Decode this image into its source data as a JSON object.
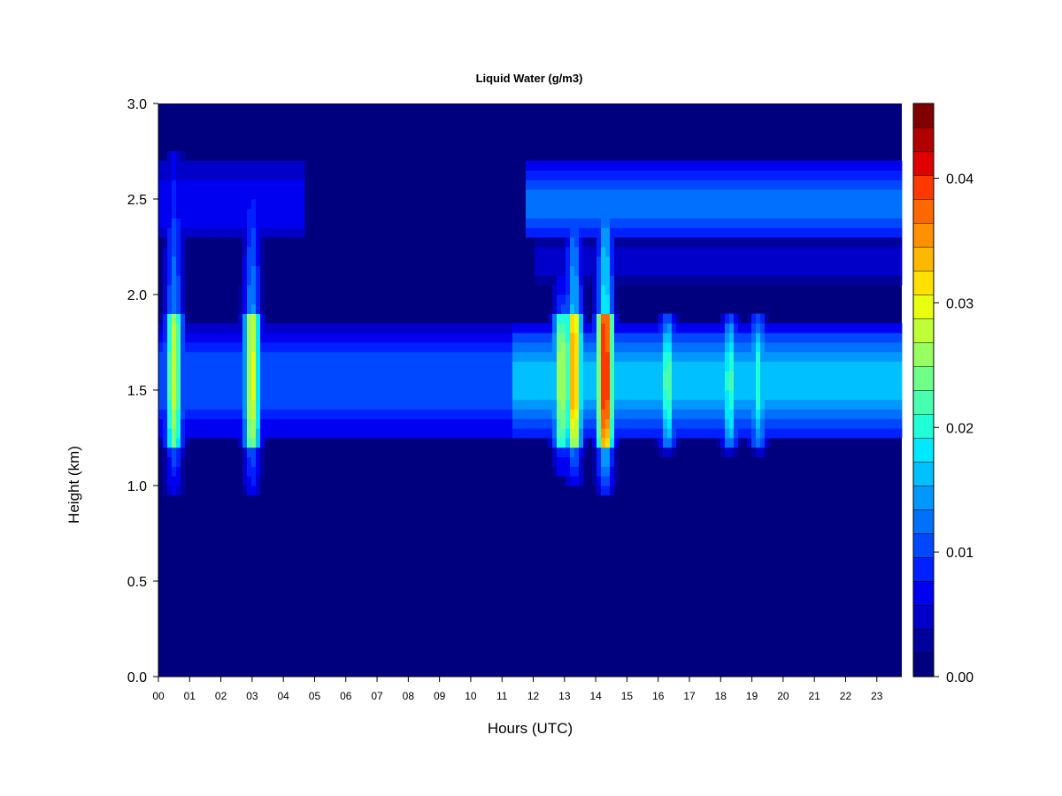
{
  "chart_data": {
    "type": "heatmap",
    "title": "Liquid Water (g/m3)",
    "xlabel": "Hours (UTC)",
    "ylabel": "Height (km)",
    "xlim": [
      0,
      23.8
    ],
    "ylim": [
      0.0,
      3.0
    ],
    "x_ticks": [
      "00",
      "01",
      "02",
      "03",
      "04",
      "05",
      "06",
      "07",
      "08",
      "09",
      "10",
      "11",
      "12",
      "13",
      "14",
      "15",
      "16",
      "17",
      "18",
      "19",
      "20",
      "21",
      "22",
      "23"
    ],
    "y_ticks": [
      "0.0",
      "0.5",
      "1.0",
      "1.5",
      "2.0",
      "2.5",
      "3.0"
    ],
    "colorbar": {
      "range": [
        0.0,
        0.046
      ],
      "tick_values": [
        0.0,
        0.01,
        0.02,
        0.03,
        0.04
      ],
      "tick_labels": [
        "0.00",
        "0.01",
        "0.02",
        "0.03",
        "0.04"
      ],
      "levels": 21,
      "colors": [
        "#00007f",
        "#00009b",
        "#0000c8",
        "#0000f0",
        "#0020ff",
        "#0048ff",
        "#0070ff",
        "#0098ff",
        "#00c0ff",
        "#00e8ff",
        "#20ffd8",
        "#48ffb0",
        "#70ff88",
        "#98ff60",
        "#c0ff38",
        "#e8ff10",
        "#ffe000",
        "#ffb800",
        "#ff9000",
        "#ff6800",
        "#ff3800",
        "#e00000",
        "#b00000",
        "#800000"
      ]
    },
    "cloud_layers": [
      {
        "base_km": 1.25,
        "top_km": 1.83,
        "peak_km": 1.55,
        "segments": [
          {
            "start_h": 0.0,
            "end_h": 11.3,
            "lwc": 0.011
          },
          {
            "start_h": 11.3,
            "end_h": 23.8,
            "lwc": 0.016
          }
        ]
      },
      {
        "base_km": 2.28,
        "top_km": 2.7,
        "peak_km": 2.48,
        "segments": [
          {
            "start_h": 0.0,
            "end_h": 4.7,
            "lwc": 0.007
          },
          {
            "start_h": 11.8,
            "end_h": 23.8,
            "lwc": 0.012
          }
        ]
      },
      {
        "base_km": 2.07,
        "top_km": 2.28,
        "peak_km": 2.17,
        "segments": [
          {
            "start_h": 12.1,
            "end_h": 23.8,
            "lwc": 0.005
          }
        ]
      }
    ],
    "hotspots": [
      {
        "hour": 0.5,
        "lwc": 0.028,
        "base_km": 0.95,
        "top_km": 2.75
      },
      {
        "hour": 3.0,
        "lwc": 0.03,
        "base_km": 0.95,
        "top_km": 2.6
      },
      {
        "hour": 12.9,
        "lwc": 0.028,
        "base_km": 1.05,
        "top_km": 2.1
      },
      {
        "hour": 13.3,
        "lwc": 0.035,
        "base_km": 1.0,
        "top_km": 2.6
      },
      {
        "hour": 14.3,
        "lwc": 0.042,
        "base_km": 0.95,
        "top_km": 2.65
      },
      {
        "hour": 16.3,
        "lwc": 0.023,
        "base_km": 1.15,
        "top_km": 1.9
      },
      {
        "hour": 18.3,
        "lwc": 0.022,
        "base_km": 1.15,
        "top_km": 1.9
      },
      {
        "hour": 19.2,
        "lwc": 0.021,
        "base_km": 1.15,
        "top_km": 1.9
      }
    ]
  }
}
